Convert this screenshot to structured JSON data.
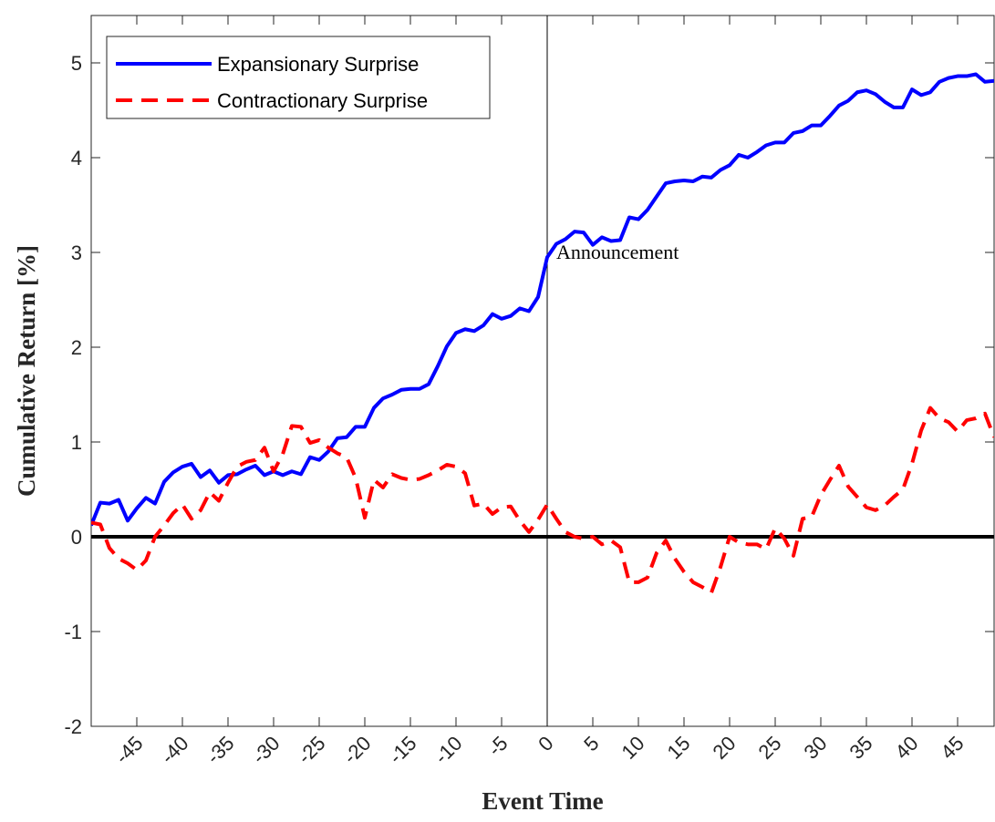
{
  "chart_data": {
    "type": "line",
    "xlabel": "Event Time",
    "ylabel": "Cumulative Return [%]",
    "x": [
      -50,
      -49,
      -48,
      -47,
      -46,
      -45,
      -44,
      -43,
      -42,
      -41,
      -40,
      -39,
      -38,
      -37,
      -36,
      -35,
      -34,
      -33,
      -32,
      -31,
      -30,
      -29,
      -28,
      -27,
      -26,
      -25,
      -24,
      -23,
      -22,
      -21,
      -20,
      -19,
      -18,
      -17,
      -16,
      -15,
      -14,
      -13,
      -12,
      -11,
      -10,
      -9,
      -8,
      -7,
      -6,
      -5,
      -4,
      -3,
      -2,
      -1,
      0,
      1,
      2,
      3,
      4,
      5,
      6,
      7,
      8,
      9,
      10,
      11,
      12,
      13,
      14,
      15,
      16,
      17,
      18,
      19,
      20,
      21,
      22,
      23,
      24,
      25,
      26,
      27,
      28,
      29,
      30,
      31,
      32,
      33,
      34,
      35,
      36,
      37,
      38,
      39,
      40,
      41,
      42,
      43,
      44,
      45,
      46,
      47,
      48,
      49
    ],
    "series": [
      {
        "name": "Expansionary Surprise",
        "color": "#0000ff",
        "style": "solid",
        "values": [
          0.12,
          0.36,
          0.35,
          0.39,
          0.17,
          0.3,
          0.41,
          0.35,
          0.58,
          0.68,
          0.74,
          0.77,
          0.63,
          0.7,
          0.57,
          0.65,
          0.66,
          0.71,
          0.75,
          0.65,
          0.69,
          0.65,
          0.69,
          0.66,
          0.84,
          0.81,
          0.9,
          1.04,
          1.05,
          1.16,
          1.16,
          1.36,
          1.46,
          1.5,
          1.55,
          1.56,
          1.56,
          1.61,
          1.8,
          2.01,
          2.15,
          2.19,
          2.17,
          2.23,
          2.35,
          2.3,
          2.33,
          2.41,
          2.38,
          2.53,
          2.95,
          3.09,
          3.14,
          3.22,
          3.21,
          3.08,
          3.16,
          3.12,
          3.13,
          3.37,
          3.35,
          3.45,
          3.59,
          3.73,
          3.75,
          3.76,
          3.75,
          3.8,
          3.79,
          3.87,
          3.92,
          4.03,
          4.0,
          4.06,
          4.13,
          4.16,
          4.16,
          4.26,
          4.28,
          4.34,
          4.34,
          4.44,
          4.55,
          4.6,
          4.69,
          4.71,
          4.67,
          4.59,
          4.53,
          4.53,
          4.72,
          4.66,
          4.69,
          4.8,
          4.84,
          4.86,
          4.86,
          4.88,
          4.8,
          4.81
        ]
      },
      {
        "name": "Contractionary Surprise",
        "color": "#ff0000",
        "style": "dashed",
        "values": [
          0.15,
          0.13,
          -0.12,
          -0.23,
          -0.28,
          -0.35,
          -0.25,
          0.0,
          0.12,
          0.25,
          0.34,
          0.19,
          0.28,
          0.47,
          0.38,
          0.57,
          0.74,
          0.79,
          0.81,
          0.94,
          0.69,
          0.87,
          1.17,
          1.16,
          0.99,
          1.02,
          0.94,
          0.88,
          0.84,
          0.62,
          0.2,
          0.6,
          0.52,
          0.66,
          0.62,
          0.6,
          0.61,
          0.65,
          0.7,
          0.76,
          0.74,
          0.67,
          0.33,
          0.35,
          0.24,
          0.31,
          0.32,
          0.17,
          0.05,
          0.18,
          0.34,
          0.19,
          0.05,
          0.0,
          -0.02,
          0.0,
          -0.08,
          -0.04,
          -0.11,
          -0.48,
          -0.48,
          -0.43,
          -0.17,
          -0.04,
          -0.23,
          -0.37,
          -0.48,
          -0.53,
          -0.59,
          -0.32,
          0.0,
          -0.06,
          -0.08,
          -0.08,
          -0.13,
          0.09,
          -0.02,
          -0.2,
          0.19,
          0.21,
          0.44,
          0.6,
          0.75,
          0.53,
          0.42,
          0.31,
          0.28,
          0.33,
          0.42,
          0.5,
          0.77,
          1.12,
          1.36,
          1.25,
          1.21,
          1.11,
          1.23,
          1.25,
          1.3,
          1.05
        ]
      }
    ],
    "xlim": [
      -50,
      49
    ],
    "ylim": [
      -2,
      5.5
    ],
    "xticks": [
      -45,
      -40,
      -35,
      -30,
      -25,
      -20,
      -15,
      -10,
      -5,
      0,
      5,
      10,
      15,
      20,
      25,
      30,
      35,
      40,
      45
    ],
    "yticks": [
      -2,
      -1,
      0,
      1,
      2,
      3,
      4,
      5
    ],
    "vline": 0,
    "hline": 0,
    "annotation": {
      "text": "Announcement",
      "x": 0,
      "y": 3
    },
    "legend": "upper left"
  }
}
